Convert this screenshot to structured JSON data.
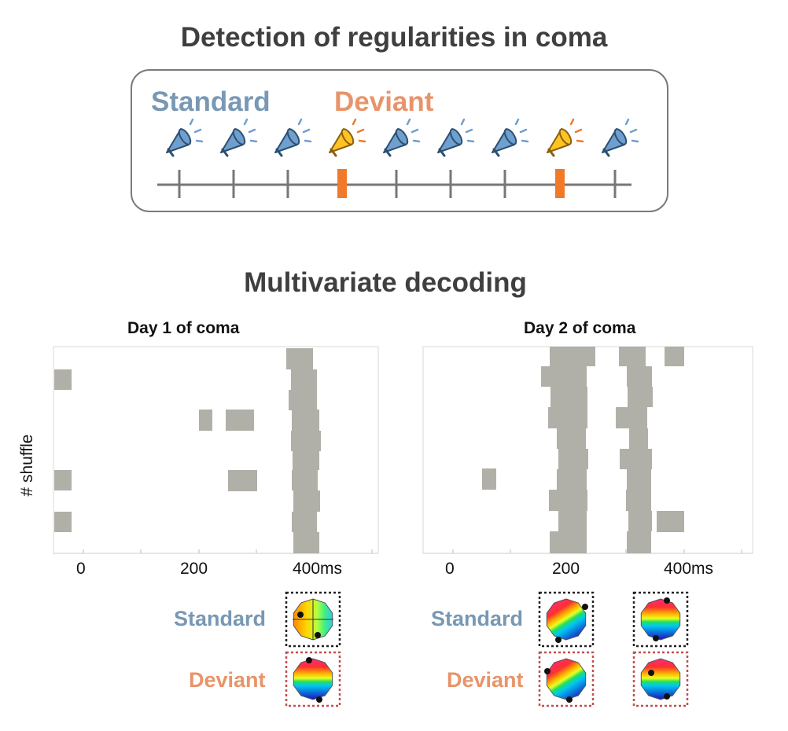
{
  "main_title": "Detection of regularities in coma",
  "sequence": {
    "standard_label": "Standard",
    "deviant_label": "Deviant",
    "stimuli": [
      "standard",
      "standard",
      "standard",
      "deviant",
      "standard",
      "standard",
      "standard",
      "deviant",
      "standard"
    ]
  },
  "decoding_title": "Multivariate decoding",
  "y_axis_label": "# shuffle",
  "x_ticks": [
    "0",
    "200",
    "400ms"
  ],
  "panels": [
    {
      "title": "Day 1 of coma",
      "maps": [
        {
          "standard": "yellow-green",
          "deviant": "rainbow"
        }
      ]
    },
    {
      "title": "Day 2 of coma",
      "maps": [
        {
          "standard": "rainbow-diagonal",
          "deviant": "rainbow-diagonal"
        },
        {
          "standard": "rainbow",
          "deviant": "rainbow"
        }
      ]
    }
  ],
  "map_labels": {
    "standard": "Standard",
    "deviant": "Deviant"
  },
  "colors": {
    "standard": "#7898b4",
    "deviant": "#e8946a",
    "deviant_marker": "#f07a2a",
    "significance": "#b1b0a8",
    "timeline": "#777777"
  }
}
